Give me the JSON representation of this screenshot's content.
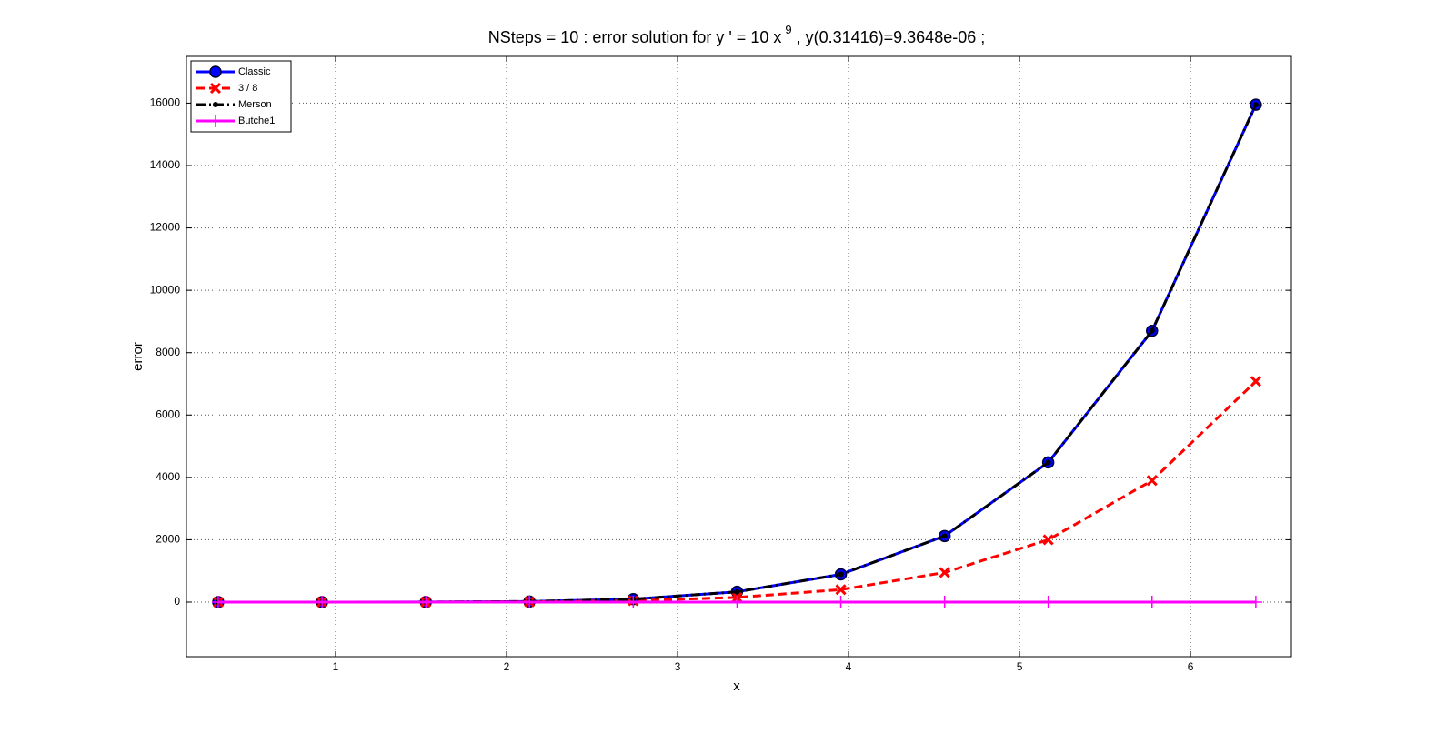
{
  "chart_data": {
    "type": "line",
    "title": [
      "NSteps = 10 :     error solution for    y ' = 10 x",
      "9",
      " ,    y(0.31416)=9.3648e-06 ;"
    ],
    "x_label": "x",
    "y_label": "error",
    "x": [
      0.314,
      0.921,
      1.528,
      2.134,
      2.741,
      3.348,
      3.955,
      4.562,
      5.168,
      5.775,
      6.382
    ],
    "series": [
      {
        "name": "Classic",
        "color": "#0000ff",
        "dash": "solid",
        "marker": "circle",
        "values": [
          0,
          0,
          2,
          20,
          95,
          330,
          890,
          2120,
          4480,
          8700,
          15950
        ]
      },
      {
        "name": " 3 / 8",
        "color": "#ff0000",
        "dash": "dashed",
        "marker": "cross",
        "values": [
          0,
          0,
          1,
          10,
          45,
          150,
          400,
          950,
          2000,
          3900,
          7080
        ]
      },
      {
        "name": "Merson",
        "color": "#000000",
        "dash": "dashdot",
        "marker": "dot",
        "values": [
          0,
          0,
          2,
          20,
          95,
          330,
          890,
          2120,
          4480,
          8700,
          15950
        ]
      },
      {
        "name": "Butche1",
        "color": "#ff00ff",
        "dash": "solid",
        "marker": "plus",
        "values": [
          0,
          0,
          0,
          0,
          0,
          0,
          0,
          0,
          0,
          0,
          0
        ]
      }
    ],
    "xlim": [
      0.128,
      6.59
    ],
    "xticks": [
      1,
      2,
      3,
      4,
      5,
      6
    ],
    "ylim": [
      -1750,
      17500
    ],
    "yticks": [
      0,
      2000,
      4000,
      6000,
      8000,
      10000,
      12000,
      14000,
      16000
    ],
    "grid": true,
    "legend": "upper left"
  }
}
